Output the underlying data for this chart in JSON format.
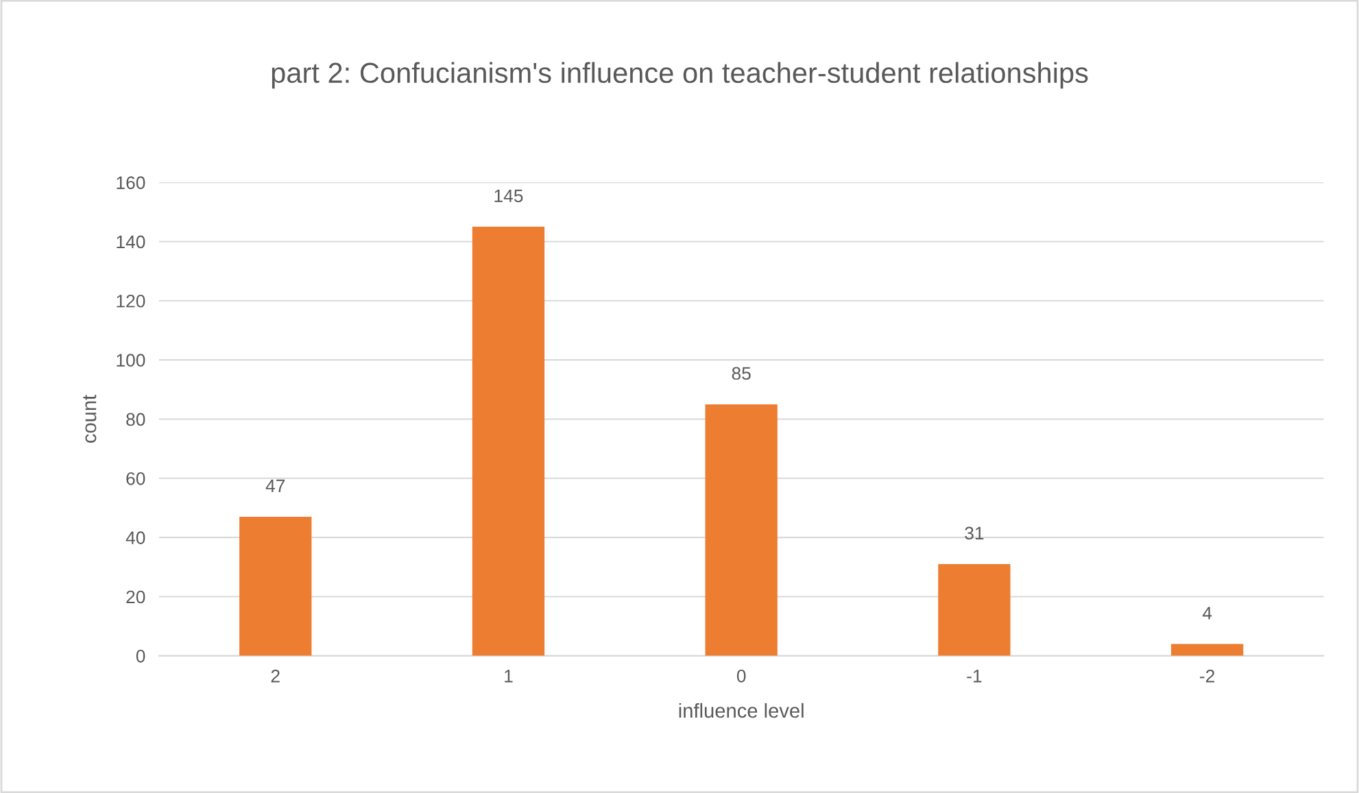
{
  "chart_data": {
    "type": "bar",
    "title": "part 2: Confucianism's influence on teacher-student relationships",
    "xlabel": "influence level",
    "ylabel": "count",
    "categories": [
      "2",
      "1",
      "0",
      "-1",
      "-2"
    ],
    "values": [
      47,
      145,
      85,
      31,
      4
    ],
    "color": "#ed7d31",
    "ylim": [
      0,
      160
    ],
    "yticks": [
      0,
      20,
      40,
      60,
      80,
      100,
      120,
      140,
      160
    ],
    "grid": "y",
    "legend": false,
    "data_labels": true
  }
}
